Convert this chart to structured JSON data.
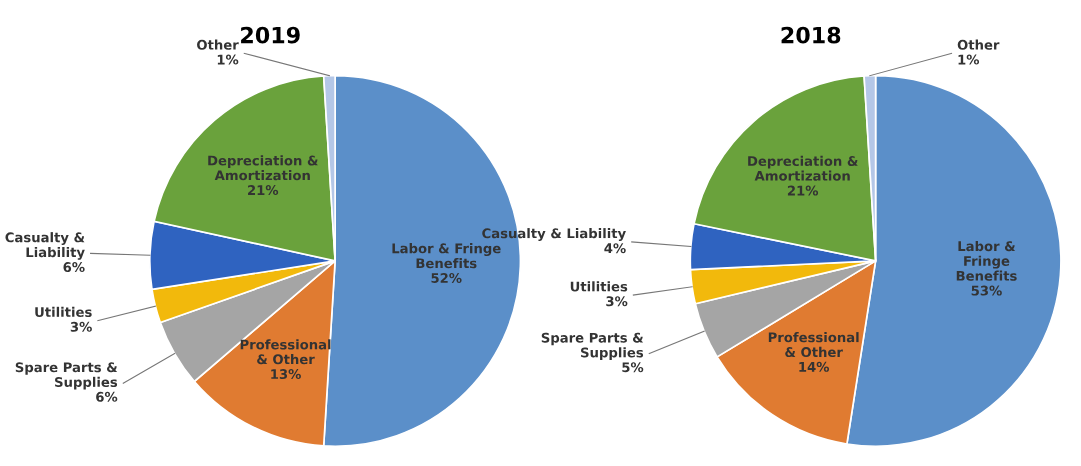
{
  "chart_data": [
    {
      "type": "pie",
      "title": "2019",
      "categories": [
        "Labor & Fringe\nBenefits",
        "Professional\n& Other",
        "Spare Parts &\nSupplies",
        "Utilities",
        "Casualty &\nLiability",
        "Depreciation &\nAmortization",
        "Other"
      ],
      "values": [
        52,
        13,
        6,
        3,
        6,
        21,
        1
      ],
      "value_labels": [
        "52%",
        "13%",
        "6%",
        "3%",
        "6%",
        "21%",
        "1%"
      ],
      "colors": [
        "#5b8fc9",
        "#e07b31",
        "#a5a5a5",
        "#f2b90c",
        "#2f63c0",
        "#6aa23c",
        "#b4c7e7"
      ]
    },
    {
      "type": "pie",
      "title": "2018",
      "categories": [
        "Labor &\nFringe\nBenefits",
        "Professional\n& Other",
        "Spare Parts &\nSupplies",
        "Utilities",
        "Casualty & Liability",
        "Depreciation &\nAmortization",
        "Other"
      ],
      "values": [
        53,
        14,
        5,
        3,
        4,
        21,
        1
      ],
      "value_labels": [
        "53%",
        "14%",
        "5%",
        "3%",
        "4%",
        "21%",
        "1%"
      ],
      "colors": [
        "#5b8fc9",
        "#e07b31",
        "#a5a5a5",
        "#f2b90c",
        "#2f63c0",
        "#6aa23c",
        "#b4c7e7"
      ]
    }
  ]
}
